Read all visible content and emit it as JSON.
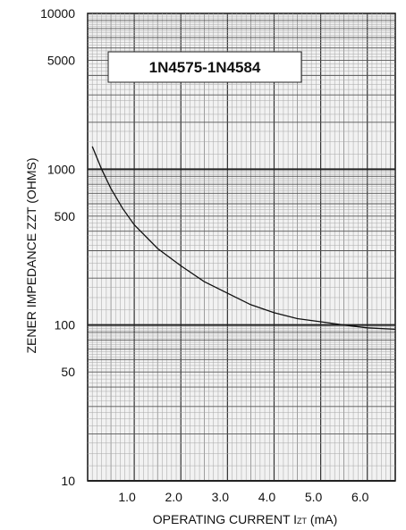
{
  "chart_data": {
    "type": "line",
    "title": "1N4575-1N4584",
    "xlabel": "OPERATING CURRENT I",
    "xlabel_sub": "ZT",
    "xlabel_unit": " (mA)",
    "ylabel": "ZENER IMPEDANCE ZZT (OHMS)",
    "x_ticks": [
      "1.0",
      "2.0",
      "3.0",
      "4.0",
      "5.0",
      "6.0"
    ],
    "x_tick_values": [
      1.0,
      2.0,
      3.0,
      4.0,
      5.0,
      6.0
    ],
    "y_ticks": [
      "10000",
      "5000",
      "1000",
      "500",
      "100",
      "50",
      "10"
    ],
    "y_tick_values": [
      10000,
      5000,
      1000,
      500,
      100,
      50,
      10
    ],
    "xlim": [
      0,
      6.6
    ],
    "ylim": [
      10,
      10000
    ],
    "y_scale": "log",
    "grid": true,
    "series": [
      {
        "x": [
          0.1,
          0.3,
          0.5,
          0.75,
          1.0,
          1.5,
          2.0,
          2.5,
          3.0,
          3.5,
          4.0,
          4.5,
          5.0,
          5.5,
          6.0,
          6.6
        ],
        "y": [
          1400,
          1000,
          750,
          560,
          440,
          310,
          240,
          190,
          160,
          135,
          120,
          110,
          105,
          100,
          96,
          94
        ]
      }
    ]
  }
}
